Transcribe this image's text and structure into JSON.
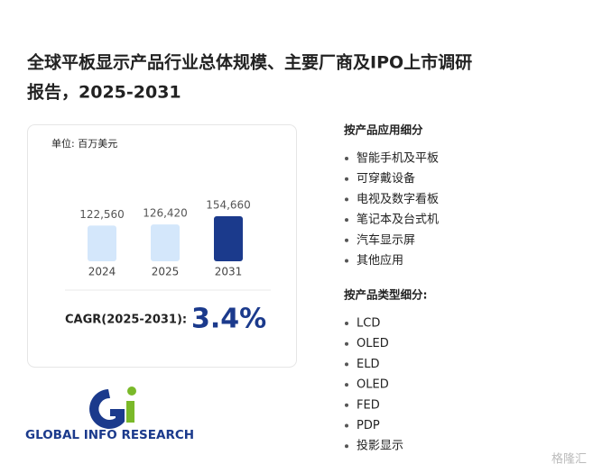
{
  "header": {
    "title_line1": "全球平板显示产品行业总体规模、主要厂商及IPO上市调研",
    "title_line2": "报告，2025-2031"
  },
  "chart_data": {
    "type": "bar",
    "unit": "单位: 百万美元",
    "categories": [
      "2024",
      "2025",
      "2031"
    ],
    "values": [
      122560,
      126420,
      154660
    ],
    "value_labels": [
      "122,560",
      "126,420",
      "154,660"
    ],
    "colors": [
      "#d4e7fb",
      "#d4e7fb",
      "#1b3a8c"
    ]
  },
  "cagr": {
    "label": "CAGR(2025-2031):",
    "value": "3.4%"
  },
  "segments": [
    {
      "heading": "按产品应用细分",
      "items": [
        "智能手机及平板",
        "可穿戴设备",
        "电视及数字看板",
        "笔记本及台式机",
        "汽车显示屏",
        "其他应用"
      ]
    },
    {
      "heading": "按产品类型细分:",
      "items": [
        "LCD",
        "OLED",
        "ELD",
        "OLED",
        "FED",
        "PDP",
        "投影显示"
      ]
    }
  ],
  "logo": {
    "text": "GLOBAL INFO RESEARCH"
  },
  "watermark": "格隆汇"
}
